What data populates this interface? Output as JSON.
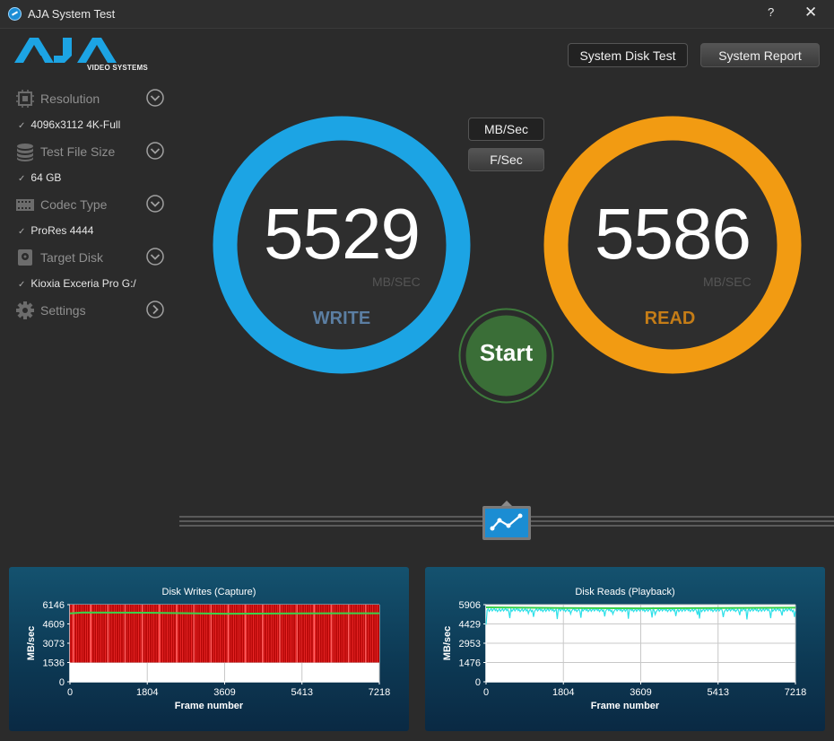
{
  "window": {
    "title": "AJA System Test",
    "help": "?",
    "close": "✕"
  },
  "logo": {
    "text": "AJA",
    "subtitle": "VIDEO SYSTEMS"
  },
  "sidebar": {
    "items": [
      {
        "label": "Resolution",
        "value": "4096x3112 4K-Full",
        "icon": "resolution-icon"
      },
      {
        "label": "Test File Size",
        "value": "64 GB",
        "icon": "file-size-icon"
      },
      {
        "label": "Codec Type",
        "value": "ProRes 4444",
        "icon": "codec-icon"
      },
      {
        "label": "Target Disk",
        "value": "Kioxia Exceria Pro G:/",
        "icon": "disk-icon"
      },
      {
        "label": "Settings",
        "value": "",
        "icon": "gear-icon"
      }
    ]
  },
  "toolbar": {
    "system_disk_test": "System Disk Test",
    "system_report": "System Report"
  },
  "units": {
    "mb_sec": "MB/Sec",
    "f_sec": "F/Sec"
  },
  "write": {
    "value": "5529",
    "unit": "MB/SEC",
    "label": "WRITE",
    "color": "#1ca4e4"
  },
  "read": {
    "value": "5586",
    "unit": "MB/SEC",
    "label": "READ",
    "color": "#f29b12"
  },
  "start": {
    "label": "Start"
  },
  "chart_data": [
    {
      "type": "line",
      "title": "Disk Writes (Capture)",
      "xlabel": "Frame number",
      "ylabel": "MB/sec",
      "x_ticks": [
        "0",
        "1804",
        "3609",
        "5413",
        "7218"
      ],
      "y_ticks": [
        "0",
        "1536",
        "3073",
        "4609",
        "6146"
      ],
      "xlim": [
        0,
        7218
      ],
      "ylim": [
        0,
        6146
      ],
      "series": [
        {
          "color": "#ff0000",
          "style": "dense spikes",
          "min": 1536,
          "max": 6146
        },
        {
          "color": "#3ad24a",
          "values_x": [
            0,
            300,
            1804,
            3609,
            5413,
            7218
          ],
          "values_y": [
            5450,
            5520,
            5500,
            5420,
            5450,
            5460
          ]
        }
      ]
    },
    {
      "type": "line",
      "title": "Disk Reads (Playback)",
      "xlabel": "Frame number",
      "ylabel": "MB/sec",
      "x_ticks": [
        "0",
        "1804",
        "3609",
        "5413",
        "7218"
      ],
      "y_ticks": [
        "0",
        "1476",
        "2953",
        "4429",
        "5906"
      ],
      "xlim": [
        0,
        7218
      ],
      "ylim": [
        0,
        5906
      ],
      "series": [
        {
          "color": "#2de0e8",
          "values_x": [
            0,
            1804,
            3609,
            5413,
            7218
          ],
          "values_y": [
            5550,
            5480,
            5450,
            5500,
            5520
          ]
        },
        {
          "color": "#3ad24a",
          "values_x": [
            0,
            1804,
            3609,
            5413,
            7218
          ],
          "values_y": [
            5700,
            5650,
            5620,
            5650,
            5670
          ]
        }
      ]
    }
  ]
}
